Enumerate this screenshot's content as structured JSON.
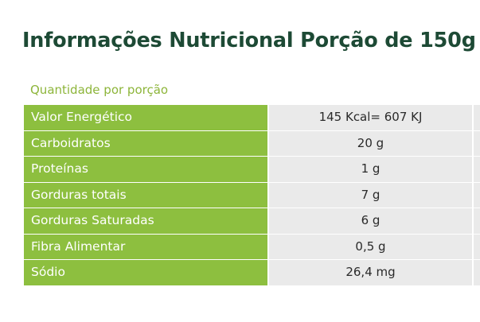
{
  "title": "Informações Nutricional Porção de 150g",
  "subtitle": "Quantidade por porção",
  "colors": {
    "title": "#1d4a35",
    "accent_green": "#8dbf3f",
    "subtitle_green": "#8db53a",
    "value_bg": "#eaeaea"
  },
  "rows": [
    {
      "label": "Valor Energético",
      "value": "145 Kcal= 607 KJ"
    },
    {
      "label": "Carboidratos",
      "value": "20 g"
    },
    {
      "label": "Proteínas",
      "value": "1 g"
    },
    {
      "label": "Gorduras totais",
      "value": "7 g"
    },
    {
      "label": "Gorduras Saturadas",
      "value": "6 g"
    },
    {
      "label": "Fibra Alimentar",
      "value": "0,5 g"
    },
    {
      "label": "Sódio",
      "value": "26,4 mg"
    }
  ]
}
